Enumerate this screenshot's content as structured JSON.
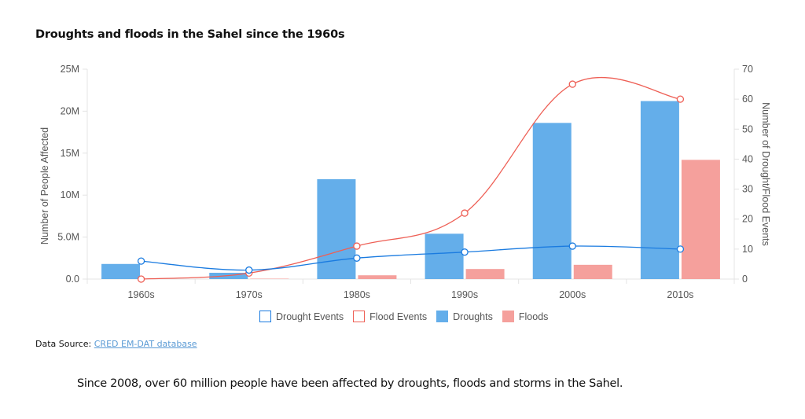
{
  "title": "Droughts and floods in the Sahel since the 1960s",
  "source": {
    "prefix": "Data Source: ",
    "link_text": "CRED EM-DAT database"
  },
  "caption": "Since 2008, over 60 million people have been affected by droughts, floods and storms in the Sahel.",
  "colors": {
    "droughts": "#64aeea",
    "floods": "#f5a09c",
    "drought_events": "#1a7be0",
    "flood_events": "#ee5f55",
    "grid": "#e4e4e4"
  },
  "chart_data": {
    "type": "bar",
    "title": "Droughts and floods in the Sahel since the 1960s",
    "categories": [
      "1960s",
      "1970s",
      "1980s",
      "1990s",
      "2000s",
      "2010s"
    ],
    "xlabel": "",
    "ylabel": "Number of People Affected",
    "y2label": "Number of Drought/Flood Events",
    "ylim": [
      0,
      25000000
    ],
    "y2lim": [
      0,
      70
    ],
    "yticks": [
      "0.0",
      "5.0M",
      "10M",
      "15M",
      "20M",
      "25M"
    ],
    "yticks_values": [
      0,
      5000000,
      10000000,
      15000000,
      20000000,
      25000000
    ],
    "y2ticks": [
      "0",
      "10",
      "20",
      "30",
      "40",
      "50",
      "60",
      "70"
    ],
    "y2ticks_values": [
      0,
      10,
      20,
      30,
      40,
      50,
      60,
      70
    ],
    "grid": false,
    "legend_position": "bottom",
    "series": [
      {
        "name": "Droughts",
        "type": "bar",
        "axis": "left",
        "values": [
          1800000,
          750000,
          11900000,
          5400000,
          18600000,
          21200000
        ]
      },
      {
        "name": "Floods",
        "type": "bar",
        "axis": "left",
        "values": [
          0,
          50000,
          450000,
          1200000,
          1700000,
          14200000
        ]
      },
      {
        "name": "Drought Events",
        "type": "line",
        "axis": "right",
        "values": [
          6,
          3,
          7,
          9,
          11,
          10
        ]
      },
      {
        "name": "Flood Events",
        "type": "line",
        "axis": "right",
        "values": [
          0,
          2,
          11,
          22,
          65,
          60
        ]
      }
    ],
    "legend": [
      "Drought Events",
      "Flood Events",
      "Droughts",
      "Floods"
    ]
  }
}
